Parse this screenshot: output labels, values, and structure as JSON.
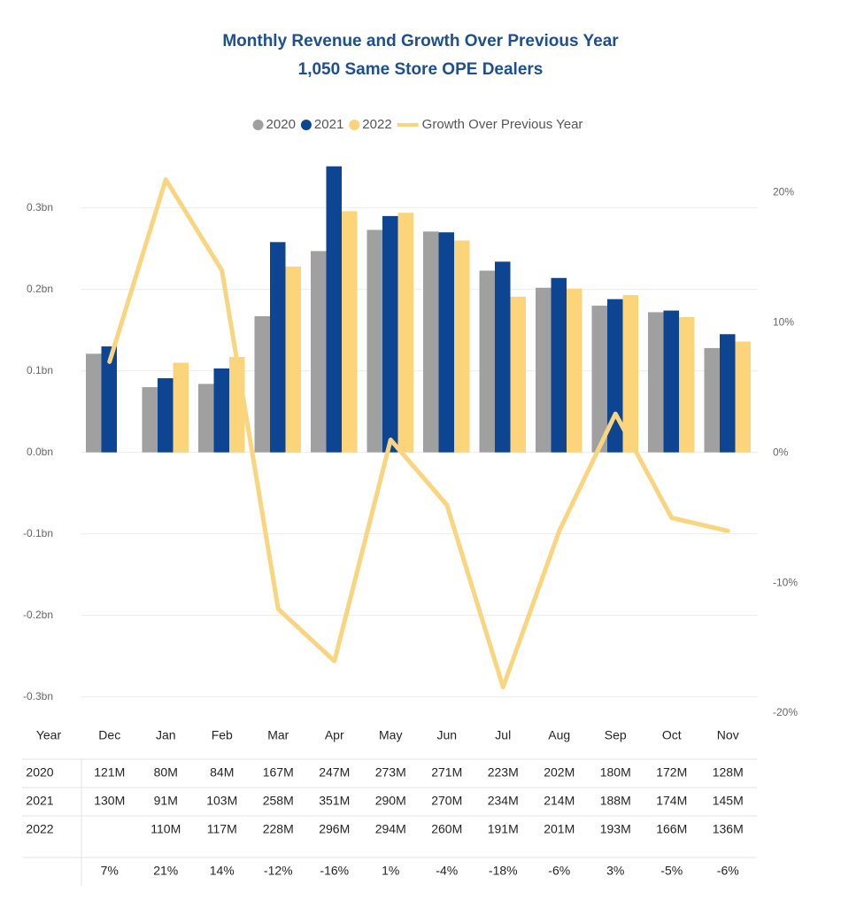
{
  "chart_data": {
    "type": "bar",
    "title": "Monthly Revenue and Growth Over Previous Year",
    "subtitle": "1,050 Same Store OPE Dealers",
    "categories": [
      "Dec",
      "Jan",
      "Feb",
      "Mar",
      "Apr",
      "May",
      "Jun",
      "Jul",
      "Aug",
      "Sep",
      "Oct",
      "Nov"
    ],
    "series": [
      {
        "name": "2020",
        "color": "#a0a0a0",
        "values": [
          0.121,
          0.08,
          0.084,
          0.167,
          0.247,
          0.273,
          0.271,
          0.223,
          0.202,
          0.18,
          0.172,
          0.128
        ],
        "value_labels": [
          "121M",
          "80M",
          "84M",
          "167M",
          "247M",
          "273M",
          "271M",
          "223M",
          "202M",
          "180M",
          "172M",
          "128M"
        ]
      },
      {
        "name": "2021",
        "color": "#0d4592",
        "values": [
          0.13,
          0.091,
          0.103,
          0.258,
          0.351,
          0.29,
          0.27,
          0.234,
          0.214,
          0.188,
          0.174,
          0.145
        ],
        "value_labels": [
          "130M",
          "91M",
          "103M",
          "258M",
          "351M",
          "290M",
          "270M",
          "234M",
          "214M",
          "188M",
          "174M",
          "145M"
        ]
      },
      {
        "name": "2022",
        "color": "#fcd57a",
        "values": [
          null,
          0.11,
          0.117,
          0.228,
          0.296,
          0.294,
          0.26,
          0.191,
          0.201,
          0.193,
          0.166,
          0.136
        ],
        "value_labels": [
          null,
          "110M",
          "117M",
          "228M",
          "296M",
          "294M",
          "260M",
          "191M",
          "201M",
          "193M",
          "166M",
          "136M"
        ]
      },
      {
        "name": "Growth Over Previous Year",
        "color": "#f9d57f",
        "type": "line",
        "axis": "y2",
        "values": [
          7,
          21,
          14,
          -12,
          -16,
          1,
          -4,
          -18,
          -6,
          3,
          -5,
          -6
        ],
        "value_labels": [
          "7%",
          "21%",
          "14%",
          "-12%",
          "-16%",
          "1%",
          "-4%",
          "-18%",
          "-6%",
          "3%",
          "-5%",
          "-6%"
        ]
      }
    ],
    "ylim": [
      -0.32,
      0.354
    ],
    "yticks": [
      {
        "value": -0.3,
        "label": "-0.3bn"
      },
      {
        "value": -0.2,
        "label": "-0.2bn"
      },
      {
        "value": -0.1,
        "label": "-0.1bn"
      },
      {
        "value": 0,
        "label": "0.0bn"
      },
      {
        "value": 0.1,
        "label": "0.1bn"
      },
      {
        "value": 0.2,
        "label": "0.2bn"
      },
      {
        "value": 0.3,
        "label": "0.3bn"
      }
    ],
    "y2lim": [
      -20,
      22.2
    ],
    "y2ticks": [
      {
        "value": -20,
        "label": "-20%"
      },
      {
        "value": -10,
        "label": "-10%"
      },
      {
        "value": 0,
        "label": "0%"
      },
      {
        "value": 10,
        "label": "10%"
      },
      {
        "value": 20,
        "label": "20%"
      }
    ],
    "grid": true,
    "legend": "top",
    "table_header": "Year"
  }
}
